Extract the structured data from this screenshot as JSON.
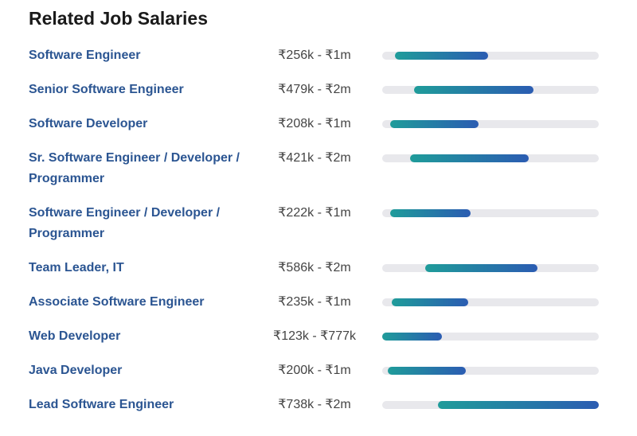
{
  "title": "Related Job Salaries",
  "colors": {
    "bar_start": "#1f9c9a",
    "bar_end": "#2b5cb2",
    "track": "#e8e8ec",
    "link": "#2b5592"
  },
  "jobs": [
    {
      "name": "Software Engineer",
      "range": "₹256k - ₹1m",
      "bar_percent": [
        5.9,
        48.9
      ]
    },
    {
      "name": "Senior Software Engineer",
      "range": "₹479k - ₹2m",
      "bar_percent": [
        14.7,
        69.9
      ]
    },
    {
      "name": "Software Developer",
      "range": "₹208k - ₹1m",
      "bar_percent": [
        3.7,
        44.5
      ]
    },
    {
      "name": "Sr. Software Engineer / Developer / Programmer",
      "range": "₹421k - ₹2m",
      "bar_percent": [
        12.9,
        67.6
      ]
    },
    {
      "name": "Software Engineer / Developer / Programmer",
      "range": "₹222k - ₹1m",
      "bar_percent": [
        3.7,
        40.8
      ]
    },
    {
      "name": "Team Leader, IT",
      "range": "₹586k - ₹2m",
      "bar_percent": [
        19.9,
        71.7
      ]
    },
    {
      "name": "Associate Software Engineer",
      "range": "₹235k - ₹1m",
      "bar_percent": [
        4.4,
        39.7
      ]
    },
    {
      "name": "Web Developer",
      "range": "₹123k - ₹777k",
      "bar_percent": [
        0,
        27.6
      ]
    },
    {
      "name": "Java Developer",
      "range": "₹200k - ₹1m",
      "bar_percent": [
        2.6,
        38.6
      ]
    },
    {
      "name": "Lead Software Engineer",
      "range": "₹738k - ₹2m",
      "bar_percent": [
        25.7,
        100
      ]
    }
  ]
}
